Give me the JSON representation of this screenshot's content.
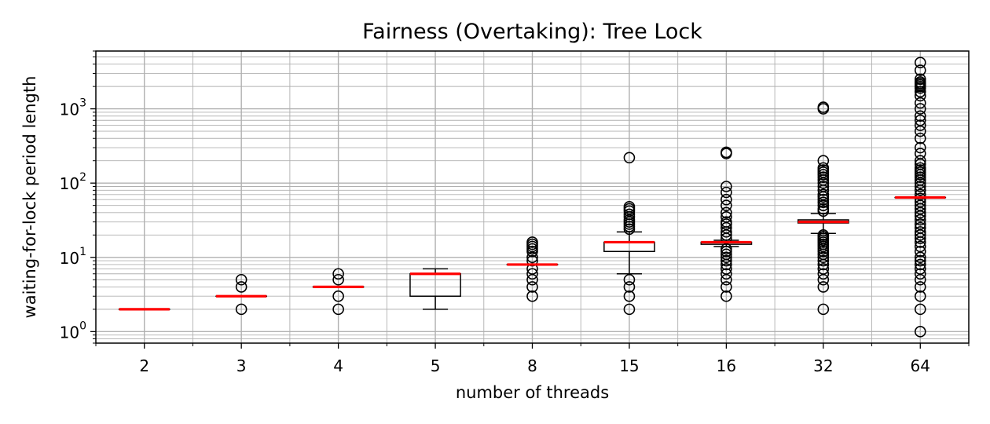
{
  "chart_data": {
    "type": "box",
    "title": "Fairness (Overtaking): Tree Lock",
    "xlabel": "number of threads",
    "ylabel": "waiting-for-lock period length",
    "yscale": "log",
    "ylim": [
      0.7,
      6000
    ],
    "grid": "major+minor",
    "categories": [
      "2",
      "3",
      "4",
      "5",
      "8",
      "15",
      "16",
      "32",
      "64"
    ],
    "y_ticks": [
      {
        "base": "10",
        "exp": "0"
      },
      {
        "base": "10",
        "exp": "1"
      },
      {
        "base": "10",
        "exp": "2"
      },
      {
        "base": "10",
        "exp": "3"
      }
    ],
    "boxes": [
      {
        "category": "2",
        "whisker_low": 2,
        "q1": 2,
        "median": 2,
        "q3": 2,
        "whisker_high": 2,
        "fliers": []
      },
      {
        "category": "3",
        "whisker_low": 3,
        "q1": 3,
        "median": 3,
        "q3": 3,
        "whisker_high": 3,
        "fliers": [
          2,
          4,
          5
        ]
      },
      {
        "category": "4",
        "whisker_low": 4,
        "q1": 4,
        "median": 4,
        "q3": 4,
        "whisker_high": 4,
        "fliers": [
          2,
          3,
          5,
          6
        ]
      },
      {
        "category": "5",
        "whisker_low": 2,
        "q1": 3,
        "median": 6,
        "q3": 6,
        "whisker_high": 7,
        "fliers": []
      },
      {
        "category": "8",
        "whisker_low": 8,
        "q1": 8,
        "median": 8,
        "q3": 8,
        "whisker_high": 8,
        "fliers": [
          3,
          4,
          5,
          6,
          7,
          9,
          10,
          12,
          13,
          14,
          15,
          16
        ]
      },
      {
        "category": "15",
        "whisker_low": 6,
        "q1": 12,
        "median": 16,
        "q3": 16,
        "whisker_high": 22,
        "fliers": [
          2,
          3,
          4,
          5,
          24,
          26,
          28,
          30,
          32,
          35,
          38,
          42,
          45,
          48,
          220
        ]
      },
      {
        "category": "16",
        "whisker_low": 14,
        "q1": 15,
        "median": 16,
        "q3": 16,
        "whisker_high": 17,
        "fliers": [
          3,
          4,
          5,
          6,
          7,
          8,
          9,
          10,
          11,
          12,
          13,
          18,
          20,
          22,
          25,
          28,
          30,
          35,
          40,
          50,
          60,
          75,
          90,
          250,
          260
        ]
      },
      {
        "category": "32",
        "whisker_low": 21,
        "q1": 29,
        "median": 30,
        "q3": 32,
        "whisker_high": 39,
        "fliers": [
          2,
          4,
          5,
          6,
          7,
          8,
          9,
          10,
          11,
          12,
          13,
          14,
          15,
          16,
          17,
          18,
          19,
          20,
          42,
          45,
          50,
          55,
          60,
          65,
          70,
          80,
          90,
          100,
          110,
          120,
          130,
          140,
          150,
          160,
          200,
          1000,
          1050
        ]
      },
      {
        "category": "64",
        "whisker_low": 64,
        "q1": 64,
        "median": 64,
        "q3": 64,
        "whisker_high": 64,
        "fliers": [
          1,
          2,
          3,
          4,
          5,
          6,
          7,
          8,
          9,
          10,
          12,
          14,
          16,
          18,
          20,
          22,
          25,
          28,
          32,
          36,
          40,
          45,
          50,
          56,
          62,
          70,
          80,
          90,
          100,
          110,
          120,
          130,
          140,
          150,
          160,
          180,
          200,
          250,
          300,
          400,
          500,
          600,
          700,
          800,
          1000,
          1200,
          1500,
          1700,
          1900,
          2000,
          2100,
          2200,
          2300,
          2500,
          3300,
          4200
        ]
      }
    ]
  }
}
